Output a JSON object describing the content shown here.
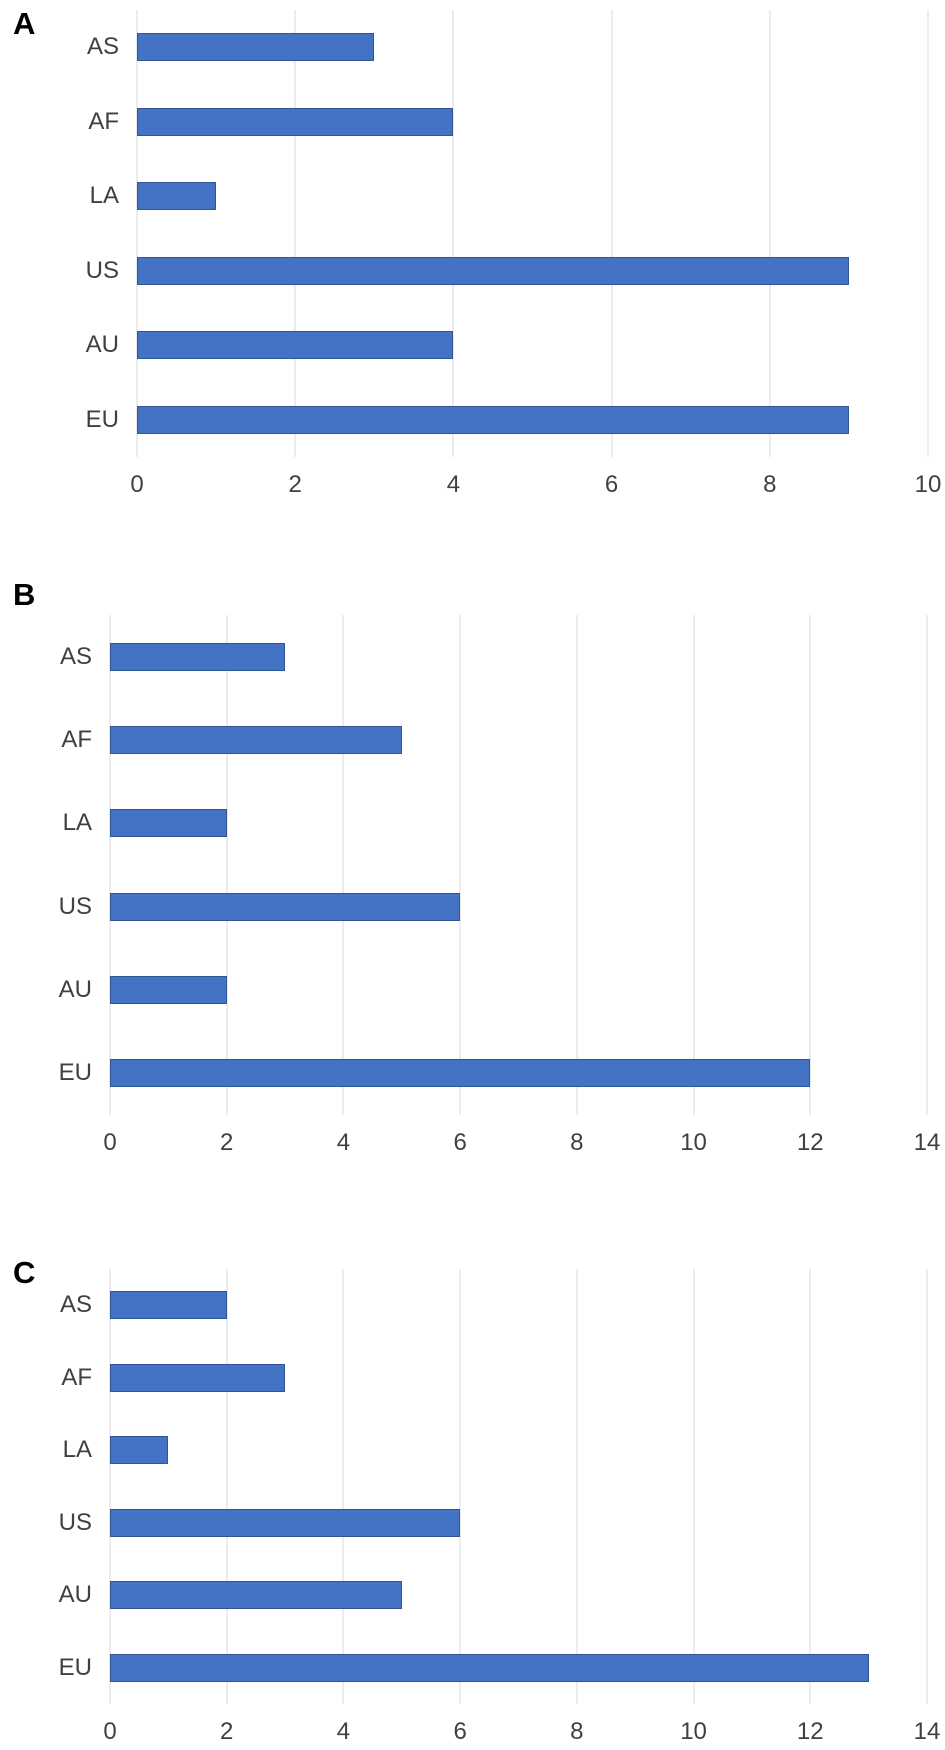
{
  "figure": {
    "description": "Three-panel horizontal bar chart figure",
    "panels": [
      "A",
      "B",
      "C"
    ]
  },
  "colors": {
    "bar": "#4472C4",
    "bar_border": "#2F5597",
    "gridline": "#D9D9D9",
    "tick_text": "#404040",
    "panel_letter": "#000000"
  },
  "chart_data": [
    {
      "type": "bar",
      "orientation": "horizontal",
      "panel_label": "A",
      "categories": [
        "AS",
        "AF",
        "LA",
        "US",
        "AU",
        "EU"
      ],
      "values": [
        3,
        4,
        1,
        9,
        4,
        9
      ],
      "title": "",
      "xlabel": "",
      "ylabel": "",
      "xlim": [
        0,
        10
      ],
      "xticks": [
        0,
        2,
        4,
        6,
        8,
        10
      ],
      "grid": true,
      "legend": false,
      "bar_color": "#4472C4"
    },
    {
      "type": "bar",
      "orientation": "horizontal",
      "panel_label": "B",
      "categories": [
        "AS",
        "AF",
        "LA",
        "US",
        "AU",
        "EU"
      ],
      "values": [
        3,
        5,
        2,
        6,
        2,
        12
      ],
      "title": "",
      "xlabel": "",
      "ylabel": "",
      "xlim": [
        0,
        14
      ],
      "xticks": [
        0,
        2,
        4,
        6,
        8,
        10,
        12,
        14
      ],
      "grid": true,
      "legend": false,
      "bar_color": "#4472C4"
    },
    {
      "type": "bar",
      "orientation": "horizontal",
      "panel_label": "C",
      "categories": [
        "AS",
        "AF",
        "LA",
        "US",
        "AU",
        "EU"
      ],
      "values": [
        2,
        3,
        1,
        6,
        5,
        13
      ],
      "title": "",
      "xlabel": "",
      "ylabel": "",
      "xlim": [
        0,
        14
      ],
      "xticks": [
        0,
        2,
        4,
        6,
        8,
        10,
        12,
        14
      ],
      "grid": true,
      "legend": false,
      "bar_color": "#4472C4"
    }
  ]
}
